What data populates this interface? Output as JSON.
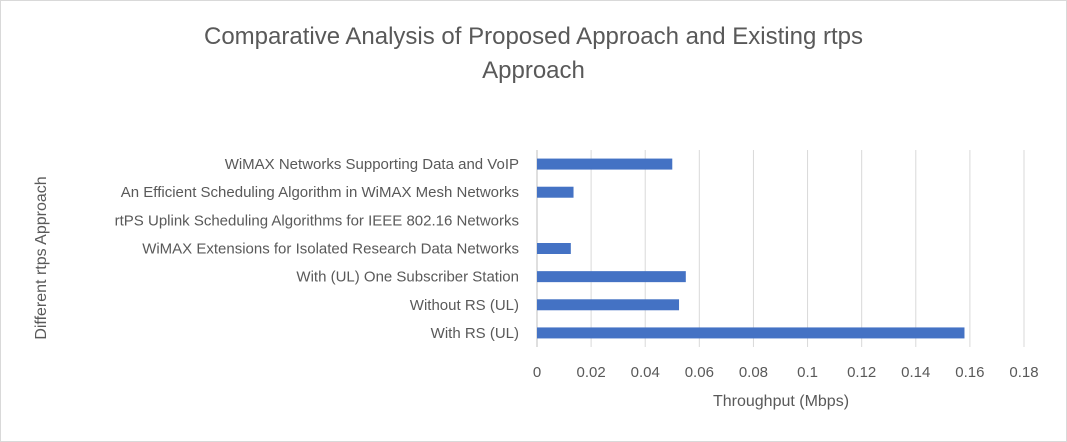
{
  "chart_data": {
    "type": "bar",
    "orientation": "horizontal",
    "title_lines": [
      "Comparative Analysis of Proposed Approach and Existing rtps",
      "Approach"
    ],
    "xlabel": "Throughput (Mbps)",
    "ylabel": "Different rtps Approach",
    "xlim": [
      0,
      0.18
    ],
    "xticks": [
      0,
      0.02,
      0.04,
      0.06,
      0.08,
      0.1,
      0.12,
      0.14,
      0.16,
      0.18
    ],
    "xtick_labels": [
      "0",
      "0.02",
      "0.04",
      "0.06",
      "0.08",
      "0.1",
      "0.12",
      "0.14",
      "0.16",
      "0.18"
    ],
    "grid": "vertical",
    "legend": "none",
    "bar_color": "#4472c4",
    "categories": [
      "WiMAX Networks Supporting Data and VoIP",
      "An Efficient Scheduling Algorithm in WiMAX Mesh Networks",
      "rtPS Uplink Scheduling Algorithms for IEEE 802.16 Networks",
      "WiMAX Extensions for Isolated Research Data Networks",
      "With (UL) One Subscriber Station",
      "Without RS (UL)",
      "With RS (UL)"
    ],
    "values": [
      0.05,
      0.0135,
      0,
      0.0125,
      0.055,
      0.0525,
      0.158
    ]
  }
}
